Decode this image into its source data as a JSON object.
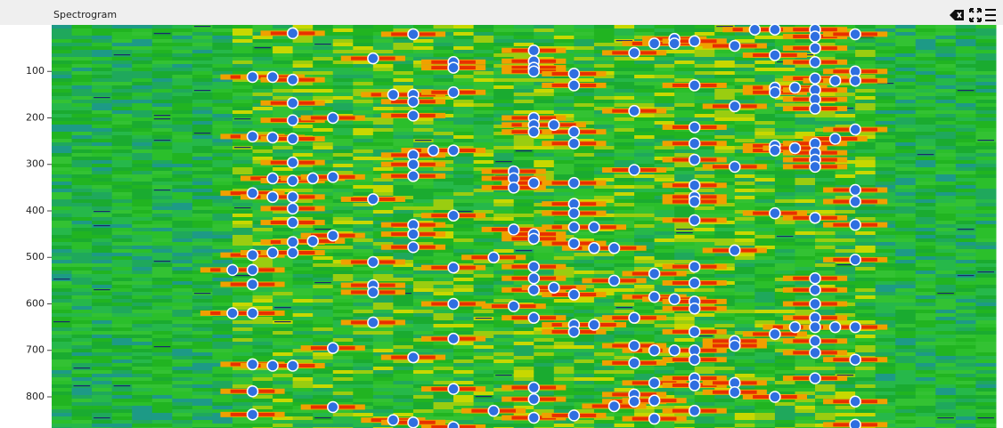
{
  "chart_data": {
    "type": "scatter",
    "title": "Spectrogram",
    "color": "#2f6fe0",
    "xlim": [
      0,
      47
    ],
    "ylim": [
      0,
      867
    ],
    "yticks": [
      100,
      200,
      300,
      400,
      500,
      600,
      700,
      800
    ],
    "x": [
      9,
      9,
      10,
      10,
      10,
      10,
      10,
      10,
      10,
      10,
      10,
      10,
      11,
      11,
      11,
      11,
      11,
      11,
      12,
      12,
      12,
      12,
      12,
      12,
      12,
      12,
      12,
      12,
      12,
      12,
      12,
      13,
      13,
      14,
      14,
      14,
      14,
      14,
      16,
      16,
      16,
      16,
      16,
      16,
      17,
      17,
      18,
      18,
      18,
      18,
      18,
      18,
      18,
      18,
      18,
      18,
      18,
      18,
      19,
      20,
      20,
      20,
      20,
      20,
      20,
      20,
      20,
      20,
      20,
      22,
      22,
      23,
      23,
      23,
      23,
      23,
      24,
      24,
      24,
      24,
      24,
      24,
      24,
      24,
      24,
      24,
      24,
      24,
      24,
      24,
      24,
      24,
      24,
      25,
      25,
      26,
      26,
      26,
      26,
      26,
      26,
      26,
      26,
      26,
      26,
      26,
      26,
      26,
      27,
      27,
      27,
      28,
      28,
      28,
      29,
      29,
      29,
      29,
      29,
      29,
      29,
      29,
      30,
      30,
      30,
      30,
      30,
      30,
      30,
      31,
      31,
      31,
      31,
      32,
      32,
      32,
      32,
      32,
      32,
      32,
      32,
      32,
      32,
      32,
      32,
      32,
      32,
      32,
      32,
      32,
      32,
      32,
      34,
      34,
      34,
      34,
      34,
      34,
      34,
      34,
      35,
      36,
      36,
      36,
      36,
      36,
      36,
      36,
      36,
      36,
      37,
      37,
      37,
      38,
      38,
      38,
      38,
      38,
      38,
      38,
      38,
      38,
      38,
      38,
      38,
      38,
      38,
      38,
      38,
      38,
      38,
      38,
      38,
      38,
      39,
      39,
      39,
      40,
      40,
      40,
      40,
      40,
      40,
      40,
      40,
      40,
      40,
      40,
      40
    ],
    "values": [
      527,
      620,
      112,
      240,
      362,
      495,
      527,
      558,
      620,
      730,
      788,
      838,
      112,
      242,
      330,
      370,
      490,
      733,
      18,
      118,
      168,
      205,
      245,
      296,
      335,
      370,
      395,
      425,
      467,
      490,
      733,
      330,
      465,
      200,
      327,
      453,
      695,
      822,
      72,
      375,
      510,
      560,
      575,
      640,
      150,
      850,
      20,
      150,
      165,
      195,
      280,
      300,
      325,
      430,
      450,
      478,
      715,
      855,
      270,
      80,
      92,
      145,
      270,
      410,
      522,
      600,
      675,
      783,
      865,
      500,
      830,
      315,
      330,
      350,
      440,
      605,
      55,
      78,
      92,
      100,
      200,
      215,
      230,
      340,
      450,
      460,
      520,
      545,
      570,
      630,
      780,
      805,
      845,
      215,
      565,
      105,
      130,
      230,
      255,
      340,
      385,
      405,
      435,
      470,
      580,
      645,
      660,
      840,
      435,
      480,
      645,
      480,
      550,
      820,
      60,
      185,
      312,
      630,
      690,
      727,
      795,
      810,
      40,
      535,
      585,
      700,
      770,
      808,
      847,
      30,
      40,
      590,
      700,
      35,
      130,
      220,
      255,
      290,
      345,
      370,
      380,
      420,
      520,
      555,
      595,
      610,
      660,
      700,
      720,
      760,
      775,
      830,
      45,
      175,
      305,
      485,
      680,
      690,
      770,
      790,
      10,
      10,
      65,
      135,
      145,
      260,
      270,
      405,
      665,
      800,
      135,
      265,
      650,
      10,
      25,
      50,
      80,
      115,
      140,
      160,
      180,
      255,
      275,
      290,
      305,
      415,
      545,
      570,
      600,
      630,
      650,
      680,
      705,
      760,
      120,
      245,
      650,
      20,
      100,
      120,
      225,
      355,
      380,
      430,
      505,
      650,
      720,
      810,
      860
    ]
  }
}
